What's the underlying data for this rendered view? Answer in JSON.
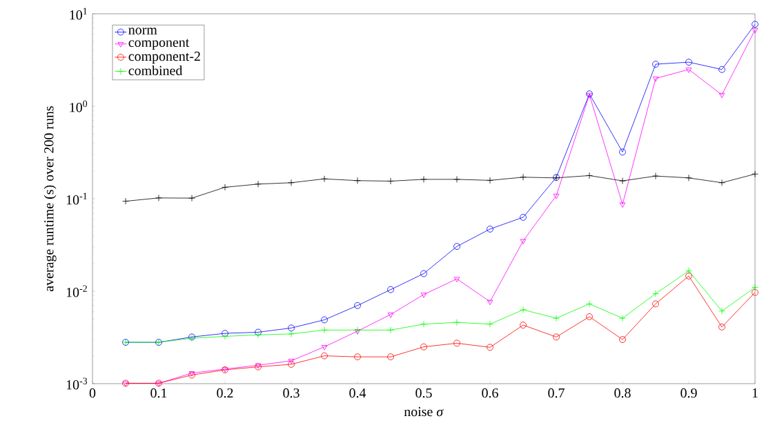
{
  "chart_data": {
    "type": "line",
    "xlabel": "noise *σ*",
    "ylabel": "average runtime (s) over 200 runs",
    "x": [
      0.05,
      0.1,
      0.15,
      0.2,
      0.25,
      0.3,
      0.35,
      0.4,
      0.45,
      0.5,
      0.55,
      0.6,
      0.65,
      0.7,
      0.75,
      0.8,
      0.85,
      0.9,
      0.95,
      1.0
    ],
    "series": [
      {
        "name": "norm",
        "color": "#0000ff",
        "marker": "circle",
        "values": [
          0.0028,
          0.0028,
          0.0032,
          0.0035,
          0.0036,
          0.004,
          0.0049,
          0.007,
          0.0104,
          0.0155,
          0.0305,
          0.047,
          0.063,
          0.17,
          1.36,
          0.32,
          2.85,
          3.0,
          2.5,
          7.7
        ]
      },
      {
        "name": "component",
        "color": "#ff00ff",
        "marker": "triangle",
        "values": [
          0.00101,
          0.00101,
          0.0013,
          0.00144,
          0.00158,
          0.00177,
          0.0025,
          0.0037,
          0.0056,
          0.0092,
          0.0136,
          0.0077,
          0.035,
          0.108,
          1.33,
          0.087,
          2.0,
          2.5,
          1.33,
          6.7
        ]
      },
      {
        "name": "component-2",
        "color": "#ff0000",
        "marker": "circle",
        "values": [
          0.00101,
          0.00101,
          0.00124,
          0.00141,
          0.00152,
          0.00162,
          0.002,
          0.00195,
          0.00195,
          0.0025,
          0.00274,
          0.00247,
          0.0043,
          0.0032,
          0.0053,
          0.003,
          0.0073,
          0.0146,
          0.0041,
          0.0097
        ]
      },
      {
        "name": "combined",
        "color": "#00ff00",
        "marker": "cross",
        "values": [
          0.0028,
          0.0028,
          0.0031,
          0.00325,
          0.00337,
          0.00345,
          0.0038,
          0.0038,
          0.0038,
          0.0044,
          0.0046,
          0.0044,
          0.0063,
          0.0051,
          0.0073,
          0.0051,
          0.0094,
          0.0166,
          0.0061,
          0.011
        ]
      },
      {
        "color": "#000000",
        "marker": "cross",
        "values": [
          0.094,
          0.102,
          0.1015,
          0.133,
          0.144,
          0.149,
          0.164,
          0.157,
          0.155,
          0.162,
          0.162,
          0.158,
          0.171,
          0.168,
          0.178,
          0.156,
          0.176,
          0.168,
          0.149,
          0.185
        ]
      }
    ],
    "log": "y",
    "legend": "top left",
    "xlim": [
      0,
      1
    ],
    "ylim": [
      0.001,
      10
    ],
    "xticks": [
      0,
      0.1,
      0.2,
      0.3,
      0.4,
      0.5,
      0.6,
      0.7,
      0.8,
      0.9,
      1
    ],
    "yticks": [
      {
        "value": 0.001,
        "label": "10$^{-3}$"
      },
      {
        "value": 0.01,
        "label": "10$^{-2}$"
      },
      {
        "value": 0.1,
        "label": "10$^{-1}$"
      },
      {
        "value": 1,
        "label": "10$^{0}$"
      },
      {
        "value": 10,
        "label": "10$^{1}$"
      }
    ]
  }
}
